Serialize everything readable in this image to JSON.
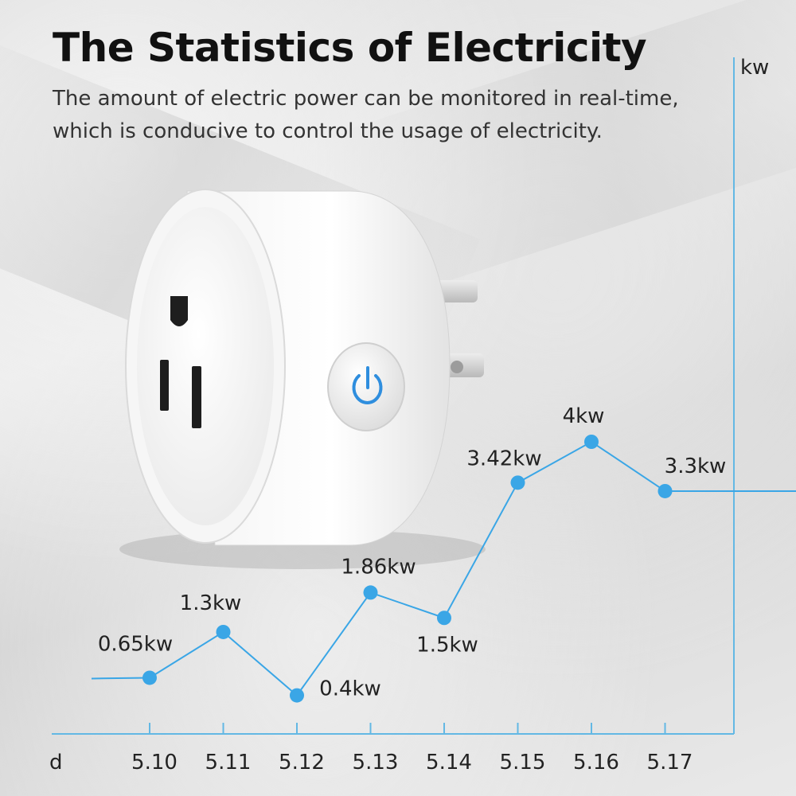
{
  "header": {
    "title": "The Statistics of Electricity",
    "subtitle_line1": "The amount of electric power can be monitored in real-time,",
    "subtitle_line2": "which is conducive to control the usage of electricity."
  },
  "colors": {
    "accent": "#3aa6e6",
    "axis": "#63b8e4",
    "power_icon": "#2f8ede"
  },
  "icons": {
    "product": "smart-plug-icon",
    "power": "power-icon"
  },
  "chart_data": {
    "type": "line",
    "xlabel": "d",
    "ylabel": "kw",
    "categories": [
      "5.10",
      "5.11",
      "5.12",
      "5.13",
      "5.14",
      "5.15",
      "5.16",
      "5.17"
    ],
    "values": [
      0.65,
      1.3,
      0.4,
      1.86,
      1.5,
      3.42,
      4,
      3.3
    ],
    "data_labels": [
      "0.65kw",
      "1.3kw",
      "0.4kw",
      "1.86kw",
      "1.5kw",
      "3.42kw",
      "4kw",
      "3.3kw"
    ],
    "grid": false,
    "legend": "none"
  }
}
